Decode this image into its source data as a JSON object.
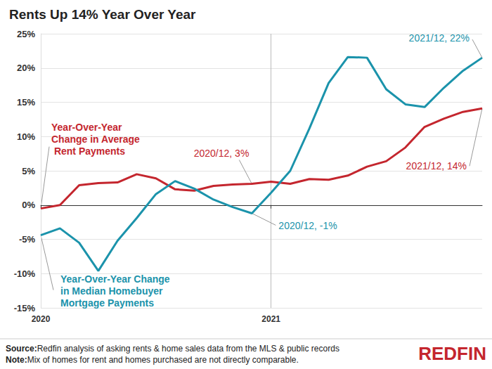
{
  "chart_data": {
    "type": "line",
    "title": "Rents Up 14% Year Over Year",
    "categories": [
      "2020",
      null,
      null,
      null,
      null,
      null,
      null,
      null,
      null,
      null,
      null,
      null,
      "2021",
      null,
      null,
      null,
      null,
      null,
      null,
      null,
      null,
      null,
      null,
      null
    ],
    "series": [
      {
        "name": "Year-Over-Year Change in Average Rent Payments",
        "color": "#c4262e",
        "values": [
          -0.5,
          0.0,
          2.9,
          3.2,
          3.3,
          4.5,
          3.9,
          2.3,
          2.1,
          2.8,
          3.0,
          3.1,
          3.4,
          3.1,
          3.8,
          3.7,
          4.3,
          5.6,
          6.4,
          8.4,
          11.4,
          12.6,
          13.6,
          14.1
        ],
        "annotations": [
          {
            "point": 11,
            "label": "2020/12, 3%"
          },
          {
            "point": 23,
            "label": "2021/12, 14%"
          }
        ]
      },
      {
        "name": "Year-Over-Year Change in Median Homebuyer Mortgage Payments",
        "color": "#1b93ab",
        "values": [
          -4.4,
          -3.4,
          -5.5,
          -9.6,
          -5.2,
          -1.9,
          1.6,
          3.5,
          2.4,
          0.8,
          -0.3,
          -1.2,
          1.8,
          5.0,
          11.2,
          17.8,
          21.6,
          21.5,
          16.9,
          14.7,
          14.3,
          17.1,
          19.6,
          21.5
        ],
        "annotations": [
          {
            "point": 11,
            "label": "2020/12, -1%"
          },
          {
            "point": 23,
            "label": "2021/12, 22%"
          }
        ]
      }
    ],
    "ylim": [
      -15,
      25
    ],
    "yticks": [
      {
        "value": -15,
        "label": "-15%"
      },
      {
        "value": -10,
        "label": "-10%"
      },
      {
        "value": -5,
        "label": "-5%"
      },
      {
        "value": 0,
        "label": "0%"
      },
      {
        "value": 5,
        "label": "5%"
      },
      {
        "value": 10,
        "label": "10%"
      },
      {
        "value": 15,
        "label": "15%"
      },
      {
        "value": 20,
        "label": "20%"
      },
      {
        "value": 25,
        "label": "25%"
      }
    ],
    "grid": true,
    "source": {
      "label": "Source:",
      "text": "Redfin analysis of asking rents & home sales data from the MLS & public records"
    },
    "note": {
      "label": "Note:",
      "text": "Mix of homes for rent and homes purchased are not directly comparable."
    },
    "logo": "REDFIN"
  }
}
